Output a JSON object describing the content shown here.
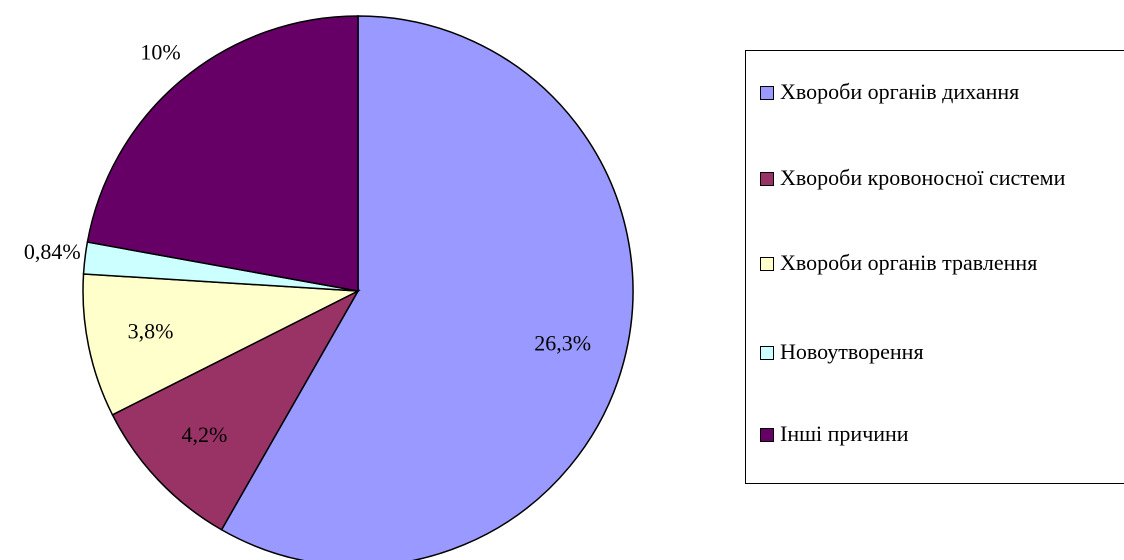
{
  "chart_data": {
    "type": "pie",
    "categories": [
      "Хвороби органів дихання",
      "Хвороби кровоносної системи",
      "Хвороби органів травлення",
      "Новоутворення",
      "Інші причини"
    ],
    "values": [
      26.3,
      4.2,
      3.8,
      0.84,
      10
    ],
    "value_labels": [
      "26,3%",
      "4,2%",
      "3,8%",
      "0,84%",
      "10%"
    ],
    "colors": [
      "#9999ff",
      "#993366",
      "#ffffcc",
      "#ccffff",
      "#660066"
    ],
    "legend": "right"
  }
}
